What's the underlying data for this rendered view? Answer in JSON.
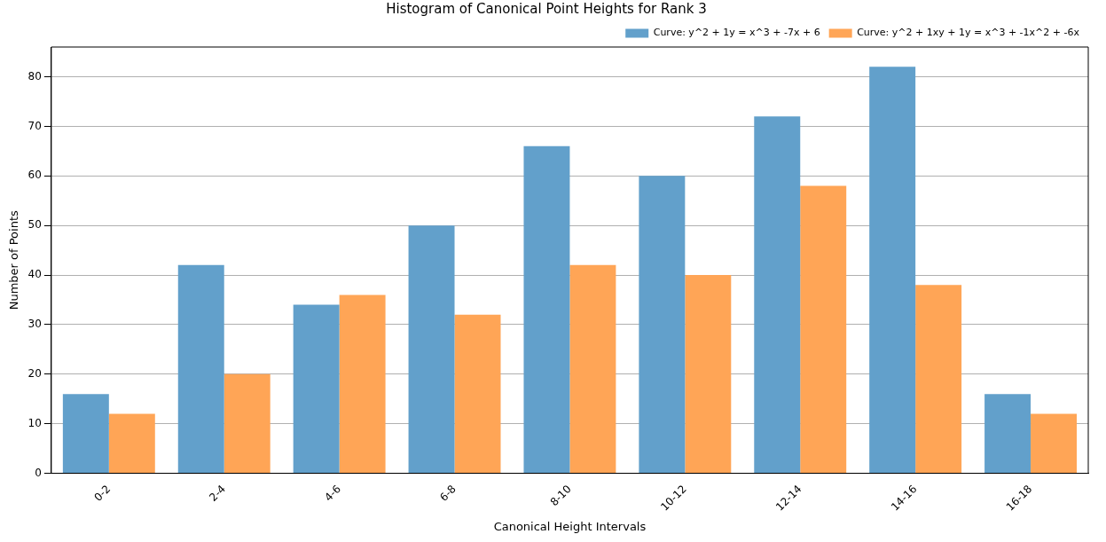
{
  "chart_data": {
    "type": "bar",
    "title": "Histogram of Canonical Point Heights for Rank 3",
    "xlabel": "Canonical Height Intervals",
    "ylabel": "Number of Points",
    "categories": [
      "0-2",
      "2-4",
      "4-6",
      "6-8",
      "8-10",
      "10-12",
      "12-14",
      "14-16",
      "16-18"
    ],
    "series": [
      {
        "name": "Curve: y^2 + 1y = x^3 + -7x + 6",
        "color": "#62a0cb",
        "values": [
          16,
          42,
          34,
          50,
          66,
          60,
          72,
          82,
          16
        ]
      },
      {
        "name": "Curve: y^2 + 1xy + 1y = x^3 + -1x^2 + -6x",
        "color": "#ffa556",
        "values": [
          12,
          20,
          36,
          32,
          42,
          40,
          58,
          38,
          12
        ]
      }
    ],
    "ylim": [
      0,
      86
    ],
    "yticks": [
      0,
      10,
      20,
      30,
      40,
      50,
      60,
      70,
      80
    ],
    "grid": "y",
    "legend": "top right"
  }
}
